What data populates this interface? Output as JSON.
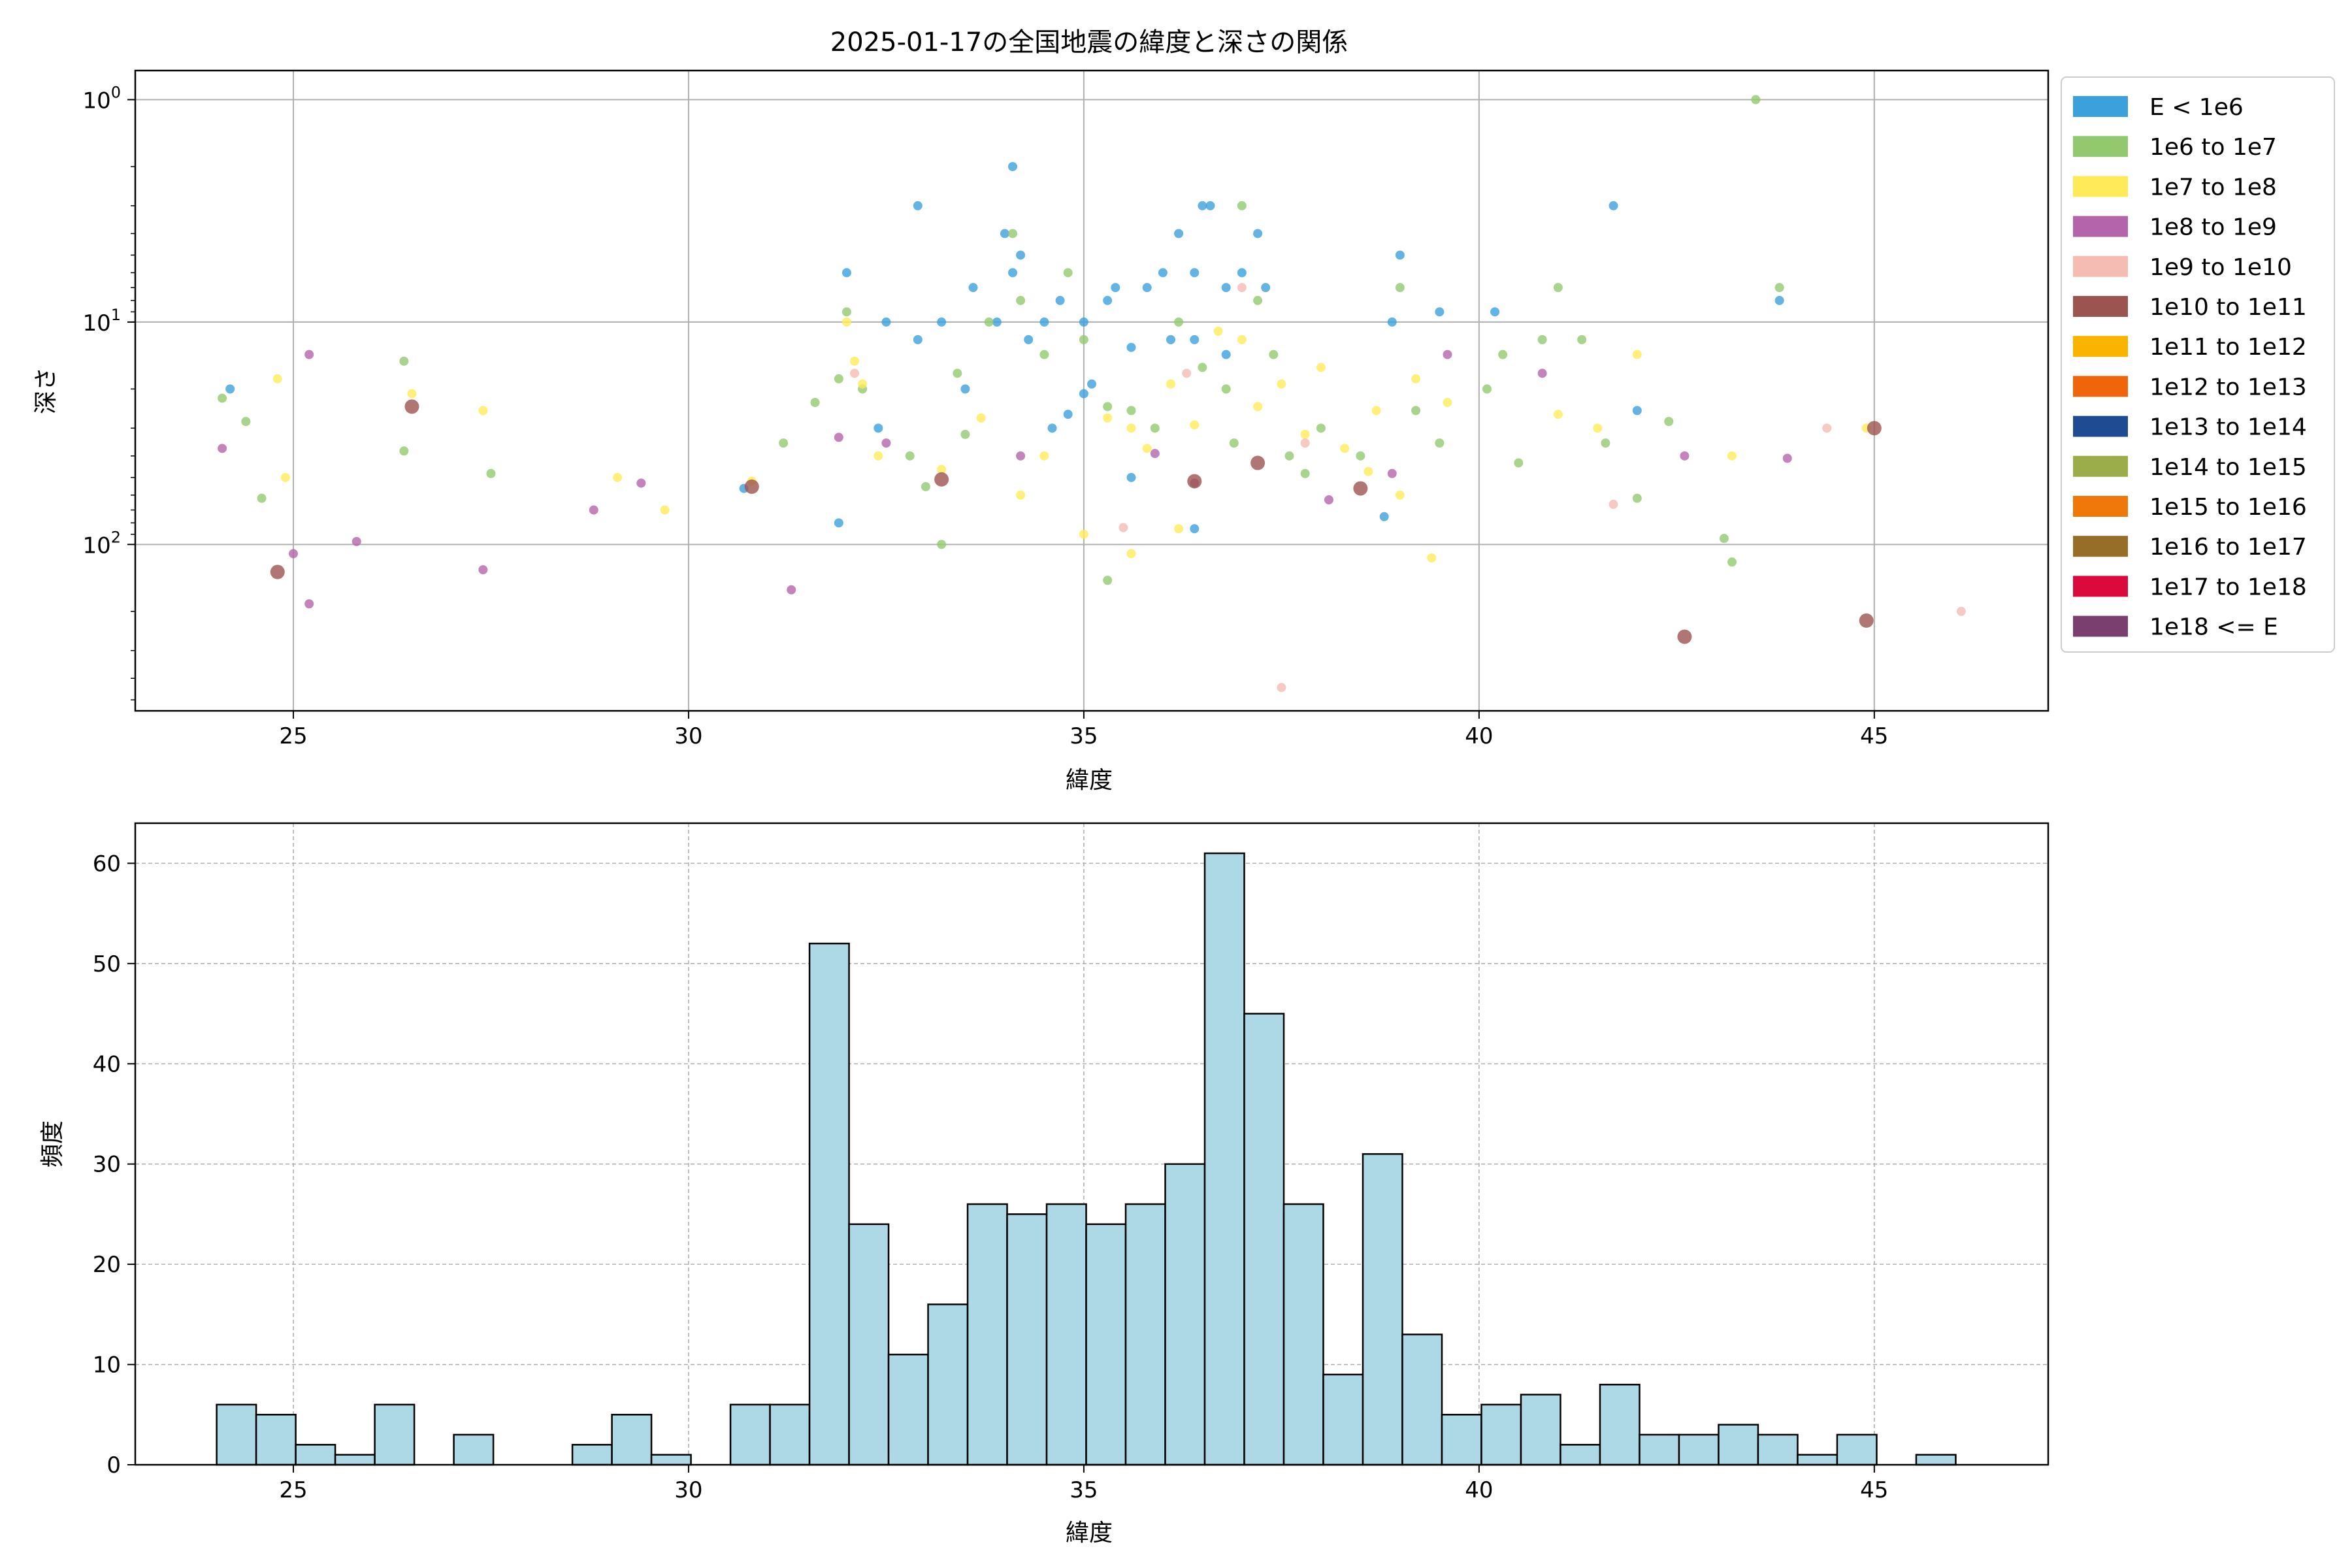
{
  "chart_data": [
    {
      "type": "scatter",
      "title": "2025-01-17の全国地震の緯度と深さの関係",
      "xlabel": "緯度",
      "ylabel": "深さ",
      "xlim": [
        23,
        47.2
      ],
      "ylim": [
        0.0,
        1.0
      ],
      "y_scale": "log",
      "y_inverted": true,
      "grid": true,
      "x_ticks": [
        25,
        30,
        35,
        40,
        45
      ],
      "y_ticks": [
        {
          "value": 1,
          "label": "10",
          "exp": "0"
        },
        {
          "value": 10,
          "label": "10",
          "exp": "1"
        },
        {
          "value": 100,
          "label": "10",
          "exp": "2"
        }
      ],
      "legend_position": "outside right",
      "series": [
        {
          "name": "E < 1e6",
          "color": "#3ca0dc",
          "size": 1,
          "points": [
            [
              24.2,
              20
            ],
            [
              32.0,
              6
            ],
            [
              32.5,
              10
            ],
            [
              32.9,
              3
            ],
            [
              33.2,
              10
            ],
            [
              33.6,
              7
            ],
            [
              33.9,
              10
            ],
            [
              34.0,
              4
            ],
            [
              34.1,
              6
            ],
            [
              34.2,
              5
            ],
            [
              34.3,
              12
            ],
            [
              34.5,
              10
            ],
            [
              34.7,
              8
            ],
            [
              35.0,
              10
            ],
            [
              35.1,
              19
            ],
            [
              35.3,
              8
            ],
            [
              35.4,
              7
            ],
            [
              35.6,
              13
            ],
            [
              35.8,
              7
            ],
            [
              36.0,
              6
            ],
            [
              36.2,
              4
            ],
            [
              36.4,
              6
            ],
            [
              36.5,
              3
            ],
            [
              36.6,
              3
            ],
            [
              36.8,
              7
            ],
            [
              37.0,
              6
            ],
            [
              37.2,
              4
            ],
            [
              37.3,
              7
            ],
            [
              31.9,
              80
            ],
            [
              32.4,
              30
            ],
            [
              33.5,
              20
            ],
            [
              34.1,
              2
            ],
            [
              34.8,
              26
            ],
            [
              35.0,
              21
            ],
            [
              35.6,
              50
            ],
            [
              36.1,
              12
            ],
            [
              36.4,
              12
            ],
            [
              36.8,
              14
            ],
            [
              38.9,
              10
            ],
            [
              39.0,
              5
            ],
            [
              39.5,
              9
            ],
            [
              40.2,
              9
            ],
            [
              41.7,
              3
            ],
            [
              42.0,
              25
            ],
            [
              43.8,
              8
            ],
            [
              30.7,
              56
            ],
            [
              32.9,
              12
            ],
            [
              34.6,
              30
            ],
            [
              36.4,
              85
            ],
            [
              38.8,
              75
            ]
          ]
        },
        {
          "name": "1e6 to 1e7",
          "color": "#92c96f",
          "size": 1,
          "points": [
            [
              24.1,
              22
            ],
            [
              24.4,
              28
            ],
            [
              24.6,
              62
            ],
            [
              26.4,
              15
            ],
            [
              26.4,
              38
            ],
            [
              27.5,
              48
            ],
            [
              31.2,
              35
            ],
            [
              31.6,
              23
            ],
            [
              31.9,
              18
            ],
            [
              32.0,
              9
            ],
            [
              32.2,
              20
            ],
            [
              32.8,
              40
            ],
            [
              33.0,
              55
            ],
            [
              33.4,
              17
            ],
            [
              33.5,
              32
            ],
            [
              33.8,
              10
            ],
            [
              34.1,
              4
            ],
            [
              34.2,
              8
            ],
            [
              34.5,
              14
            ],
            [
              34.8,
              6
            ],
            [
              35.0,
              12
            ],
            [
              35.3,
              24
            ],
            [
              35.6,
              25
            ],
            [
              35.9,
              30
            ],
            [
              36.2,
              10
            ],
            [
              36.5,
              16
            ],
            [
              36.8,
              20
            ],
            [
              37.0,
              3
            ],
            [
              37.2,
              8
            ],
            [
              37.4,
              14
            ],
            [
              37.6,
              40
            ],
            [
              37.8,
              48
            ],
            [
              38.0,
              30
            ],
            [
              38.5,
              40
            ],
            [
              39.0,
              7
            ],
            [
              39.2,
              25
            ],
            [
              39.5,
              35
            ],
            [
              40.1,
              20
            ],
            [
              40.3,
              14
            ],
            [
              40.5,
              43
            ],
            [
              40.8,
              12
            ],
            [
              41.0,
              7
            ],
            [
              41.3,
              12
            ],
            [
              41.6,
              35
            ],
            [
              42.0,
              62
            ],
            [
              42.4,
              28
            ],
            [
              43.1,
              94
            ],
            [
              43.2,
              120
            ],
            [
              43.5,
              1
            ],
            [
              43.8,
              7
            ],
            [
              35.3,
              145
            ],
            [
              33.2,
              100
            ],
            [
              36.9,
              35
            ]
          ]
        },
        {
          "name": "1e7 to 1e8",
          "color": "#ffeb5a",
          "size": 1,
          "points": [
            [
              24.8,
              18
            ],
            [
              24.9,
              50
            ],
            [
              26.5,
              21
            ],
            [
              27.4,
              25
            ],
            [
              29.1,
              50
            ],
            [
              29.7,
              70
            ],
            [
              30.8,
              52
            ],
            [
              32.0,
              10
            ],
            [
              32.1,
              15
            ],
            [
              32.2,
              19
            ],
            [
              32.4,
              40
            ],
            [
              33.2,
              46
            ],
            [
              33.7,
              27
            ],
            [
              34.2,
              60
            ],
            [
              34.5,
              40
            ],
            [
              35.0,
              90
            ],
            [
              35.3,
              27
            ],
            [
              35.6,
              30
            ],
            [
              35.8,
              37
            ],
            [
              36.1,
              19
            ],
            [
              36.4,
              29
            ],
            [
              36.7,
              11
            ],
            [
              37.0,
              12
            ],
            [
              37.2,
              24
            ],
            [
              37.5,
              19
            ],
            [
              37.8,
              32
            ],
            [
              38.0,
              16
            ],
            [
              38.3,
              37
            ],
            [
              38.6,
              47
            ],
            [
              38.7,
              25
            ],
            [
              39.0,
              60
            ],
            [
              39.2,
              18
            ],
            [
              39.4,
              115
            ],
            [
              39.6,
              23
            ],
            [
              41.0,
              26
            ],
            [
              41.5,
              30
            ],
            [
              42.0,
              14
            ],
            [
              43.2,
              40
            ],
            [
              44.9,
              30
            ],
            [
              35.6,
              110
            ],
            [
              36.2,
              85
            ]
          ]
        },
        {
          "name": "1e8 to 1e9",
          "color": "#b464aa",
          "size": 1,
          "points": [
            [
              24.1,
              37
            ],
            [
              25.0,
              110
            ],
            [
              25.2,
              14
            ],
            [
              25.8,
              97
            ],
            [
              27.4,
              130
            ],
            [
              28.8,
              70
            ],
            [
              29.4,
              53
            ],
            [
              31.3,
              160
            ],
            [
              31.9,
              33
            ],
            [
              32.5,
              35
            ],
            [
              34.2,
              40
            ],
            [
              35.9,
              39
            ],
            [
              36.4,
              53
            ],
            [
              38.1,
              63
            ],
            [
              38.9,
              48
            ],
            [
              39.6,
              14
            ],
            [
              40.8,
              17
            ],
            [
              42.6,
              40
            ],
            [
              43.9,
              41
            ],
            [
              25.2,
              185
            ]
          ]
        },
        {
          "name": "1e9 to 1e10",
          "color": "#f5bcb4",
          "size": 1,
          "points": [
            [
              32.1,
              17
            ],
            [
              35.5,
              84
            ],
            [
              36.3,
              17
            ],
            [
              37.0,
              7
            ],
            [
              37.8,
              35
            ],
            [
              37.5,
              440
            ],
            [
              41.7,
              66
            ],
            [
              44.4,
              30
            ],
            [
              46.1,
              200
            ]
          ]
        },
        {
          "name": "1e10 to 1e11",
          "color": "#9b5450",
          "size": 2,
          "points": [
            [
              24.8,
              133
            ],
            [
              26.5,
              24
            ],
            [
              30.8,
              55
            ],
            [
              33.2,
              51
            ],
            [
              36.4,
              52
            ],
            [
              37.2,
              43
            ],
            [
              38.5,
              56
            ],
            [
              42.6,
              260
            ],
            [
              44.9,
              220
            ],
            [
              45.0,
              30
            ]
          ]
        }
      ],
      "legend": [
        {
          "name": "E < 1e6",
          "color": "#3ca0dc"
        },
        {
          "name": "1e6 to 1e7",
          "color": "#92c96f"
        },
        {
          "name": "1e7 to 1e8",
          "color": "#ffeb5a"
        },
        {
          "name": "1e8 to 1e9",
          "color": "#b464aa"
        },
        {
          "name": "1e9 to 1e10",
          "color": "#f5bcb4"
        },
        {
          "name": "1e10 to 1e11",
          "color": "#9b5450"
        },
        {
          "name": "1e11 to 1e12",
          "color": "#fab400"
        },
        {
          "name": "1e12 to 1e13",
          "color": "#f0640a"
        },
        {
          "name": "1e13 to 1e14",
          "color": "#1e4b91"
        },
        {
          "name": "1e14 to 1e15",
          "color": "#9bac4b"
        },
        {
          "name": "1e15 to 1e16",
          "color": "#f0780a"
        },
        {
          "name": "1e16 to 1e17",
          "color": "#966e28"
        },
        {
          "name": "1e17 to 1e18",
          "color": "#dc0a3c"
        },
        {
          "name": "1e18 <= E",
          "color": "#7a3f6e"
        }
      ]
    },
    {
      "type": "bar",
      "title": "",
      "xlabel": "緯度",
      "ylabel": "頻度",
      "xlim": [
        23,
        47.2
      ],
      "ylim": [
        0,
        64
      ],
      "grid": true,
      "x_ticks": [
        25,
        30,
        35,
        40,
        45
      ],
      "y_ticks": [
        0,
        10,
        20,
        30,
        40,
        50,
        60
      ],
      "bar_color": "#add8e6",
      "edge_color": "#000000",
      "bins": {
        "start": 24.03,
        "width": 0.5
      },
      "values": [
        6,
        5,
        2,
        1,
        6,
        0,
        3,
        0,
        0,
        2,
        5,
        1,
        0,
        6,
        6,
        52,
        24,
        11,
        16,
        26,
        25,
        26,
        24,
        26,
        30,
        61,
        45,
        26,
        9,
        31,
        13,
        5,
        6,
        7,
        2,
        8,
        3,
        3,
        4,
        3,
        1,
        3,
        0,
        1
      ]
    }
  ]
}
